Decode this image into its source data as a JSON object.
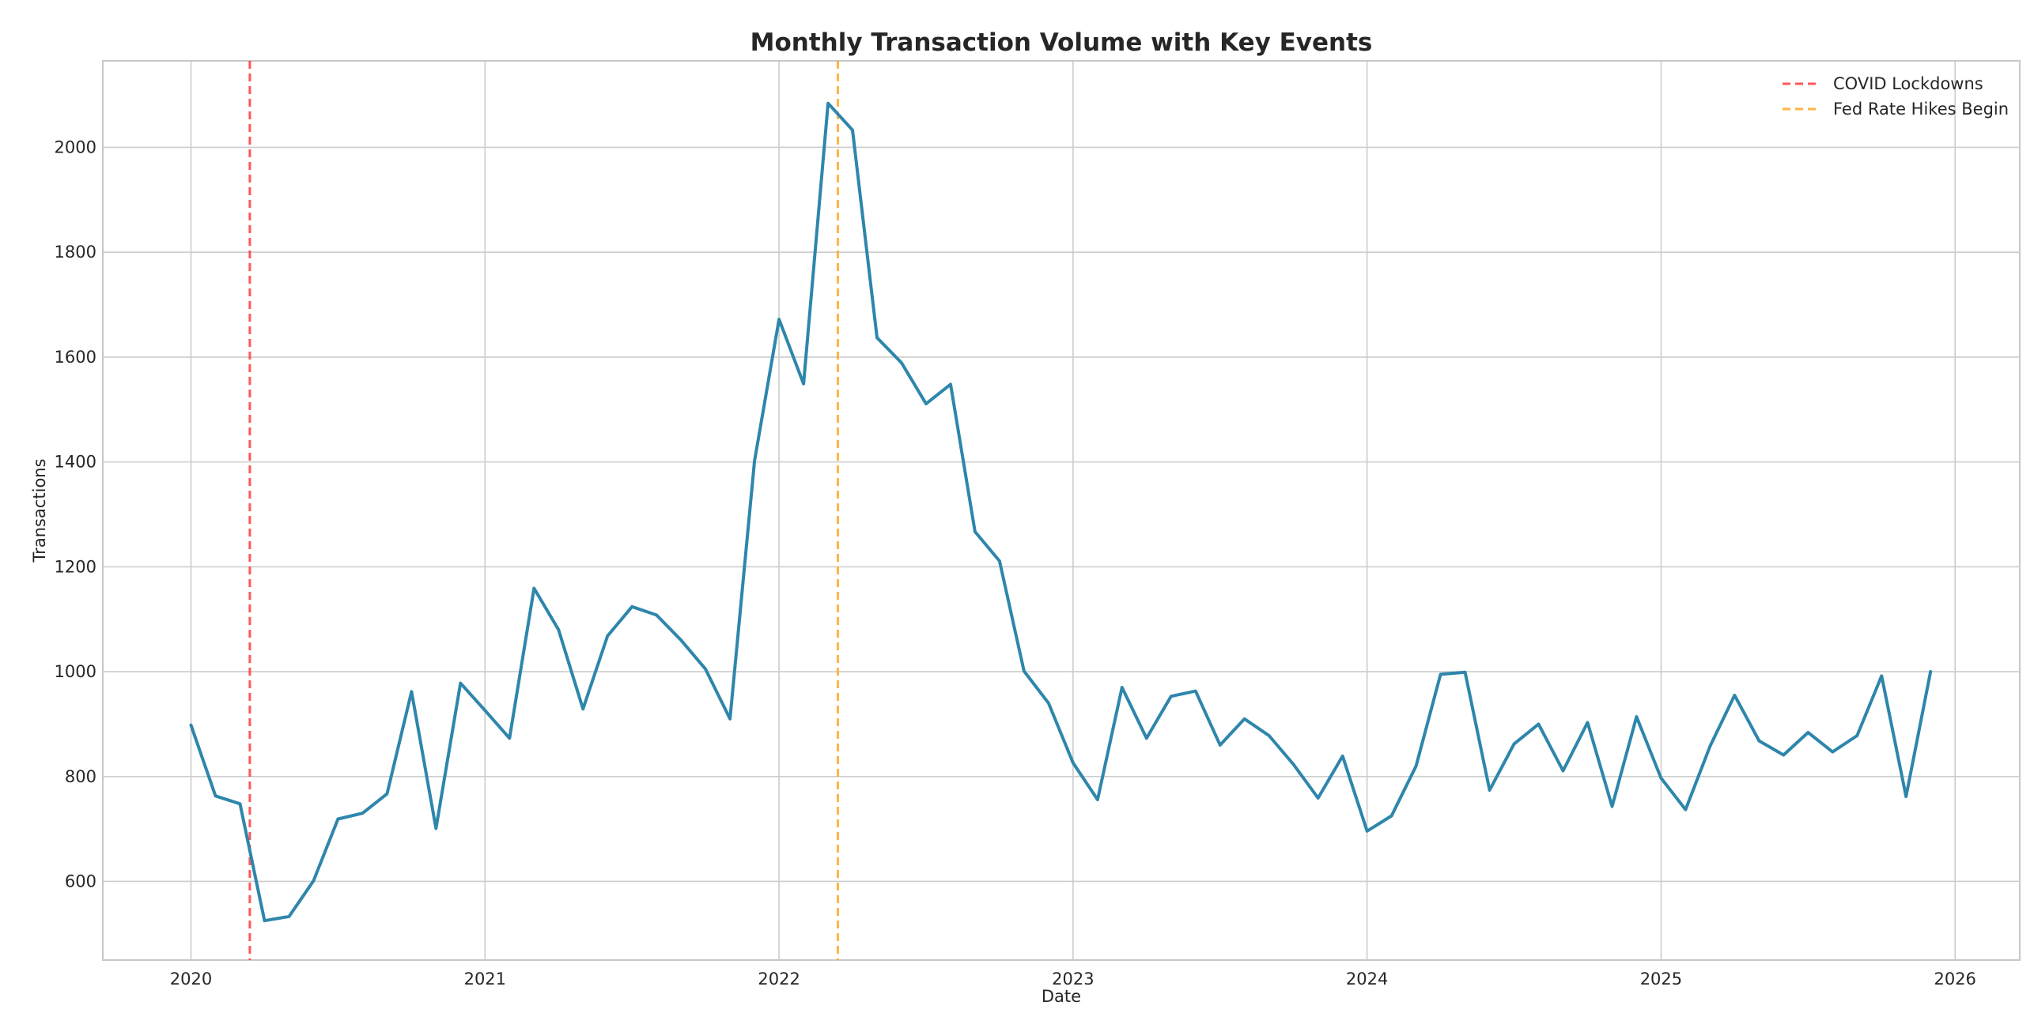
{
  "chart_data": {
    "type": "line",
    "title": "Monthly Transaction Volume with Key Events",
    "xlabel": "Date",
    "ylabel": "Transactions",
    "xlim": [
      2019.7,
      2026.22
    ],
    "ylim": [
      450,
      2165
    ],
    "x_ticks": [
      2020,
      2021,
      2022,
      2023,
      2024,
      2025,
      2026
    ],
    "x_tick_labels": [
      "2020",
      "2021",
      "2022",
      "2023",
      "2024",
      "2025",
      "2026"
    ],
    "y_ticks": [
      600,
      800,
      1000,
      1200,
      1400,
      1600,
      1800,
      2000
    ],
    "y_tick_labels": [
      "600",
      "800",
      "1000",
      "1200",
      "1400",
      "1600",
      "1800",
      "2000"
    ],
    "grid": true,
    "legend_position": "top-right",
    "series": [
      {
        "name": "Transactions",
        "color": "#2e86ab",
        "start": "2020-01",
        "values": [
          898,
          763,
          748,
          525,
          533,
          601,
          719,
          730,
          767,
          962,
          701,
          978,
          926,
          873,
          1159,
          1080,
          929,
          1068,
          1124,
          1108,
          1060,
          1005,
          910,
          1402,
          1672,
          1549,
          2084,
          2033,
          1637,
          1589,
          1511,
          1548,
          1267,
          1211,
          1001,
          940,
          826,
          756,
          970,
          873,
          953,
          963,
          860,
          910,
          878,
          823,
          759,
          839,
          696,
          725,
          820,
          995,
          999,
          774,
          862,
          900,
          811,
          903,
          743,
          914,
          797,
          737,
          858,
          955,
          868,
          841,
          884,
          847,
          878,
          992,
          762,
          1000
        ]
      }
    ],
    "events": [
      {
        "label": "COVID Lockdowns",
        "date": "2020-03-15",
        "x": 2020.2,
        "color": "#ff3b3b"
      },
      {
        "label": "Fed Rate Hikes Begin",
        "date": "2022-03-16",
        "x": 2022.2,
        "color": "#ffa726"
      }
    ]
  }
}
